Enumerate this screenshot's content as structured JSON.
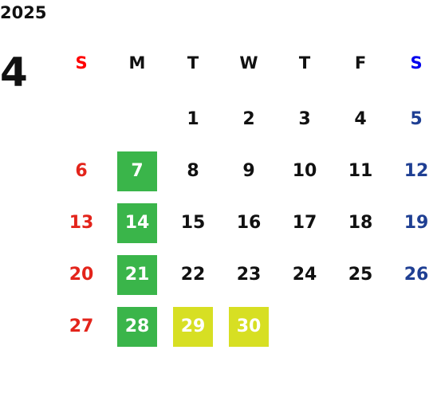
{
  "year": "2025",
  "month": "4",
  "weekdays": [
    "S",
    "M",
    "T",
    "W",
    "T",
    "F",
    "S"
  ],
  "weeks": [
    [
      null,
      null,
      "1",
      "2",
      "3",
      "4",
      "5"
    ],
    [
      "6",
      "7",
      "8",
      "9",
      "10",
      "11",
      "12"
    ],
    [
      "13",
      "14",
      "15",
      "16",
      "17",
      "18",
      "19"
    ],
    [
      "20",
      "21",
      "22",
      "23",
      "24",
      "25",
      "26"
    ],
    [
      "27",
      "28",
      "29",
      "30",
      null,
      null,
      null
    ]
  ],
  "highlights": [
    {
      "color": "#3ab54a",
      "days": [
        "7",
        "14",
        "21",
        "28"
      ]
    },
    {
      "color": "#d7df23",
      "days": [
        "29",
        "30"
      ]
    }
  ]
}
